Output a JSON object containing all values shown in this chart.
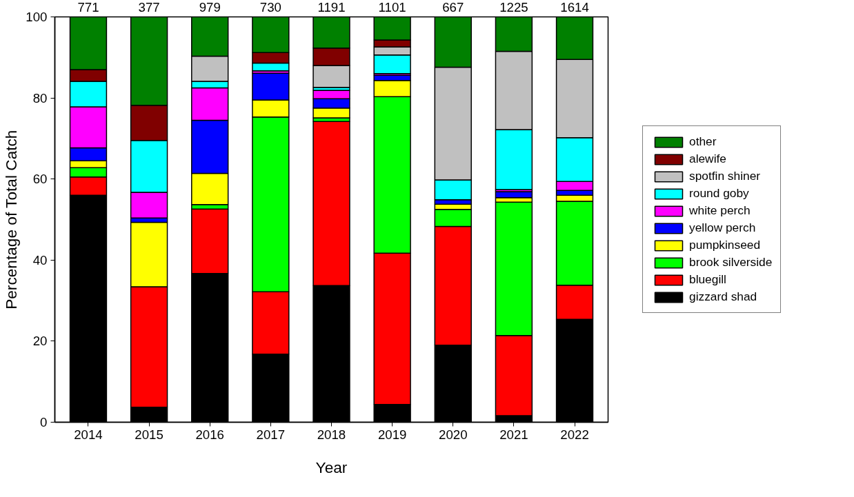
{
  "chart_data": {
    "type": "bar",
    "stacked": true,
    "xlabel": "Year",
    "ylabel": "Percentage of Total Catch",
    "categories": [
      "2014",
      "2015",
      "2016",
      "2017",
      "2018",
      "2019",
      "2020",
      "2021",
      "2022"
    ],
    "series": [
      {
        "name": "gizzard shad",
        "color": "#000000",
        "values": [
          56,
          3.7,
          36.7,
          16.8,
          33.7,
          4.4,
          19.0,
          1.6,
          25.4
        ]
      },
      {
        "name": "bluegill",
        "color": "#ff0000",
        "values": [
          4.5,
          29.7,
          15.9,
          15.4,
          40.5,
          37.3,
          29.3,
          19.8,
          8.4
        ]
      },
      {
        "name": "brook silverside",
        "color": "#00ff00",
        "values": [
          2.3,
          null,
          1.1,
          43.1,
          0.9,
          38.6,
          4.2,
          32.9,
          20.7
        ]
      },
      {
        "name": "pumpkinseed",
        "color": "#ffff00",
        "values": [
          1.7,
          15.9,
          7.7,
          4.2,
          2.4,
          4.0,
          1.3,
          1.1,
          1.5
        ]
      },
      {
        "name": "yellow perch",
        "color": "#0000ff",
        "values": [
          3.2,
          1.1,
          13.1,
          6.6,
          2.3,
          1.3,
          1.1,
          1.5,
          1.2
        ]
      },
      {
        "name": "white perch",
        "color": "#ff00ff",
        "values": [
          10.1,
          6.3,
          8.0,
          0.6,
          2.1,
          0.4,
          null,
          0.5,
          2.2
        ]
      },
      {
        "name": "round goby",
        "color": "#00ffff",
        "values": [
          6.3,
          12.8,
          1.6,
          1.9,
          0.7,
          4.6,
          4.9,
          14.8,
          10.8
        ]
      },
      {
        "name": "spotfin shiner",
        "color": "#c0c0c0",
        "values": [
          null,
          null,
          6.2,
          null,
          5.4,
          2.0,
          27.8,
          19.3,
          19.3
        ]
      },
      {
        "name": "alewife",
        "color": "#800000",
        "values": [
          2.9,
          8.7,
          null,
          2.6,
          4.3,
          1.7,
          null,
          null,
          null
        ]
      },
      {
        "name": "other",
        "color": "#008000",
        "values": [
          13.0,
          21.8,
          9.7,
          8.8,
          7.7,
          5.7,
          12.4,
          8.5,
          10.5
        ]
      }
    ],
    "annotations": [
      {
        "text": "771",
        "x": "2014",
        "y": 100
      },
      {
        "text": "377",
        "x": "2015",
        "y": 100
      },
      {
        "text": "979",
        "x": "2016",
        "y": 100
      },
      {
        "text": "730",
        "x": "2017",
        "y": 100
      },
      {
        "text": "1191",
        "x": "2018",
        "y": 100
      },
      {
        "text": "1101",
        "x": "2019",
        "y": 100
      },
      {
        "text": "667",
        "x": "2020",
        "y": 100
      },
      {
        "text": "1225",
        "x": "2021",
        "y": 100
      },
      {
        "text": "1614",
        "x": "2022",
        "y": 100
      }
    ],
    "ylim": [
      0,
      100
    ],
    "yticks": [
      0,
      20,
      40,
      60,
      80,
      100
    ],
    "grid": false,
    "legend": "right"
  }
}
